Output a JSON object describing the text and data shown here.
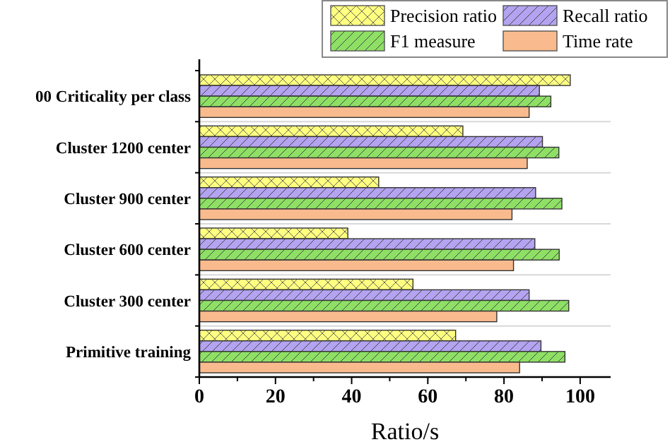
{
  "chart_data": {
    "type": "bar",
    "orientation": "horizontal",
    "xlabel": "Ratio/s",
    "categories": [
      "00 Criticality per class",
      "Cluster 1200 center",
      "Cluster 900 center",
      "Cluster 600 center",
      "Cluster 300 center",
      "Primitive training"
    ],
    "series": [
      {
        "name": "Precision ratio",
        "color": "#ffff80",
        "values": [
          97.4,
          69.2,
          47.1,
          39,
          56.1,
          67.3
        ]
      },
      {
        "name": "Recall ratio",
        "color": "#b3a3f0",
        "values": [
          89.3,
          90.1,
          88.3,
          88.1,
          86.6,
          89.7
        ]
      },
      {
        "name": "F1 measure",
        "color": "#8ee065",
        "values": [
          92.3,
          94.4,
          95.2,
          94.5,
          97,
          96
        ]
      },
      {
        "name": "Time rate",
        "color": "#f9bb8d",
        "values": [
          86.6,
          86.1,
          82.1,
          82.5,
          78.1,
          84.1
        ]
      }
    ],
    "xlim": [
      0,
      108
    ],
    "xticks": [
      0,
      20,
      40,
      60,
      80,
      100
    ],
    "grid": "y",
    "legend": "top right"
  }
}
